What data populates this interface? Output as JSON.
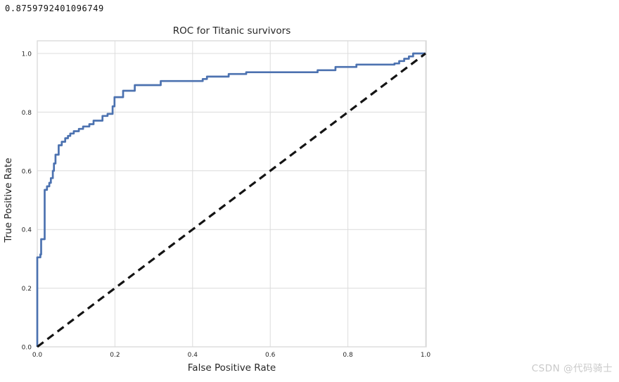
{
  "page": {
    "auc_text": "0.8759792401096749",
    "watermark": "CSDN @代码骑士"
  },
  "chart_data": {
    "type": "line",
    "title": "ROC for Titanic survivors",
    "xlabel": "False Positive Rate",
    "ylabel": "True Positive Rate",
    "xlim": [
      0.0,
      1.0
    ],
    "ylim": [
      0.0,
      1.0
    ],
    "xticks": [
      0.0,
      0.2,
      0.4,
      0.6,
      0.8,
      1.0
    ],
    "yticks": [
      0.0,
      0.2,
      0.4,
      0.6,
      0.8,
      1.0
    ],
    "grid": true,
    "legend": "none",
    "colors": {
      "roc_line": "#4c72b0",
      "diagonal_line": "#141414",
      "grid_line": "#dcdcdc",
      "frame": "#d9d9d9",
      "tick_text": "#262626",
      "label_text": "#262626",
      "title_text": "#262626"
    },
    "series": [
      {
        "name": "ROC curve",
        "style": "step",
        "points": [
          [
            0.0,
            0.0
          ],
          [
            0.0,
            0.305
          ],
          [
            0.008,
            0.315
          ],
          [
            0.01,
            0.367
          ],
          [
            0.019,
            0.535
          ],
          [
            0.025,
            0.547
          ],
          [
            0.031,
            0.559
          ],
          [
            0.035,
            0.575
          ],
          [
            0.04,
            0.6
          ],
          [
            0.043,
            0.625
          ],
          [
            0.047,
            0.655
          ],
          [
            0.055,
            0.687
          ],
          [
            0.063,
            0.699
          ],
          [
            0.072,
            0.711
          ],
          [
            0.079,
            0.719
          ],
          [
            0.085,
            0.727
          ],
          [
            0.094,
            0.735
          ],
          [
            0.107,
            0.743
          ],
          [
            0.118,
            0.751
          ],
          [
            0.134,
            0.759
          ],
          [
            0.145,
            0.771
          ],
          [
            0.168,
            0.787
          ],
          [
            0.181,
            0.794
          ],
          [
            0.194,
            0.82
          ],
          [
            0.199,
            0.851
          ],
          [
            0.221,
            0.873
          ],
          [
            0.251,
            0.892
          ],
          [
            0.318,
            0.906
          ],
          [
            0.426,
            0.913
          ],
          [
            0.437,
            0.921
          ],
          [
            0.493,
            0.93
          ],
          [
            0.538,
            0.936
          ],
          [
            0.722,
            0.943
          ],
          [
            0.768,
            0.954
          ],
          [
            0.822,
            0.962
          ],
          [
            0.92,
            0.966
          ],
          [
            0.932,
            0.974
          ],
          [
            0.945,
            0.982
          ],
          [
            0.957,
            0.99
          ],
          [
            0.968,
            1.0
          ],
          [
            1.0,
            1.0
          ]
        ]
      },
      {
        "name": "chance diagonal",
        "style": "dashed",
        "points": [
          [
            0.0,
            0.0
          ],
          [
            1.0,
            1.0
          ]
        ]
      }
    ]
  }
}
